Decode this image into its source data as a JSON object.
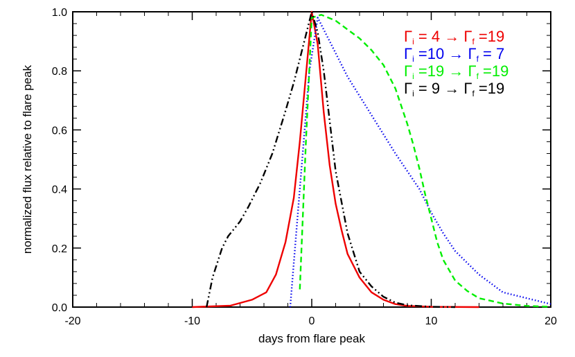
{
  "chart_data": {
    "type": "line",
    "title": "",
    "xlabel": "days from flare peak",
    "ylabel": "normalized flux relative to flare peak",
    "xlim": [
      -20,
      20
    ],
    "ylim": [
      0,
      1
    ],
    "xticks": [
      -20,
      -10,
      0,
      10,
      20
    ],
    "xtick_labels": [
      "-20",
      "-10",
      "0",
      "10",
      "20"
    ],
    "yticks": [
      0,
      0.2,
      0.4,
      0.6,
      0.8,
      1.0
    ],
    "ytick_labels": [
      "0.0",
      "0.2",
      "0.4",
      "0.6",
      "0.8",
      "1.0"
    ],
    "grid": false,
    "legend_position": "top-right",
    "series": [
      {
        "name": "Γi = 4 → Γf =19",
        "legend": {
          "a": "Γ",
          "a_sub": "i",
          "mid": " = 4  → ",
          "b": "Γ",
          "b_sub": "f",
          "end": " =19"
        },
        "color": "#ee0000",
        "style": "solid",
        "x": [
          -10,
          -6.8,
          -5,
          -3.8,
          -3.0,
          -2.2,
          -1.5,
          -1.0,
          -0.5,
          0,
          0.5,
          1.0,
          1.5,
          2.0,
          2.5,
          3.0,
          4.0,
          5.0,
          6.0,
          7.0,
          8.0,
          10.0,
          14.0
        ],
        "y": [
          0,
          0.005,
          0.025,
          0.05,
          0.11,
          0.22,
          0.37,
          0.56,
          0.78,
          1.0,
          0.89,
          0.66,
          0.48,
          0.35,
          0.26,
          0.18,
          0.1,
          0.05,
          0.025,
          0.01,
          0.004,
          0.001,
          0
        ]
      },
      {
        "name": "Γi =10 → Γf = 7",
        "legend": {
          "a": "Γ",
          "a_sub": "i",
          "mid": " =10 → ",
          "b": "Γ",
          "b_sub": "f",
          "end": " = 7"
        },
        "color": "#0000ee",
        "style": "dotted",
        "x": [
          -1.8,
          -1.0,
          -0.2,
          0.5,
          1.5,
          3,
          5,
          7,
          9,
          10,
          11,
          12,
          14,
          16,
          18,
          20
        ],
        "y": [
          0,
          0.4,
          0.8,
          0.98,
          0.9,
          0.78,
          0.65,
          0.52,
          0.4,
          0.32,
          0.25,
          0.19,
          0.11,
          0.05,
          0.03,
          0.01
        ]
      },
      {
        "name": "Γi =19 → Γf =19",
        "legend": {
          "a": "Γ",
          "a_sub": "i",
          "mid": " =19 → ",
          "b": "Γ",
          "b_sub": "f",
          "end": " =19"
        },
        "color": "#00ee00",
        "style": "dashed",
        "x": [
          -1.0,
          -0.5,
          0,
          0.8,
          2,
          3,
          4,
          5,
          6,
          7,
          8,
          8.5,
          9,
          9.5,
          10,
          10.5,
          11,
          12,
          13,
          14,
          16,
          18,
          20
        ],
        "y": [
          0.06,
          0.55,
          0.98,
          0.99,
          0.97,
          0.94,
          0.91,
          0.87,
          0.82,
          0.74,
          0.62,
          0.55,
          0.47,
          0.38,
          0.3,
          0.22,
          0.16,
          0.09,
          0.055,
          0.03,
          0.012,
          0.004,
          0.001
        ]
      },
      {
        "name": "Γi = 9 → Γf =19",
        "legend": {
          "a": "Γ",
          "a_sub": "i",
          "mid": " = 9  → ",
          "b": "Γ",
          "b_sub": "f",
          "end": " =19"
        },
        "color": "#000000",
        "style": "dashdotdot",
        "x": [
          -8.8,
          -8.3,
          -7.5,
          -7.0,
          -6.0,
          -5.3,
          -4.3,
          -3.3,
          -2.3,
          -1.5,
          -0.5,
          0,
          0.5,
          1.0,
          1.5,
          2.0,
          3.0,
          4.0,
          5.0,
          6.0,
          7.0,
          8.0,
          10.0,
          12.0
        ],
        "y": [
          0,
          0.1,
          0.2,
          0.24,
          0.29,
          0.34,
          0.42,
          0.52,
          0.65,
          0.76,
          0.92,
          1.0,
          0.93,
          0.8,
          0.63,
          0.46,
          0.25,
          0.12,
          0.07,
          0.035,
          0.015,
          0.006,
          0.001,
          0
        ]
      }
    ]
  }
}
